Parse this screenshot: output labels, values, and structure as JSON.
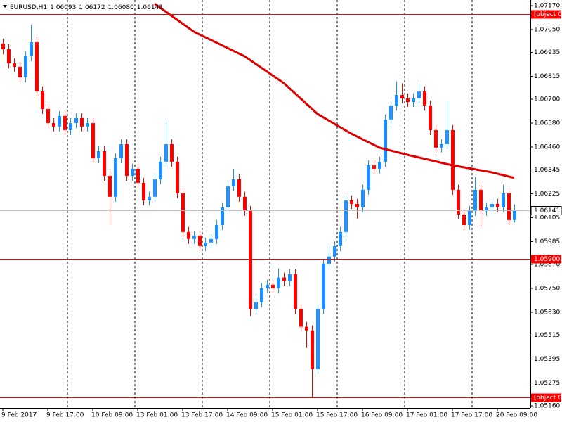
{
  "chart_data": {
    "type": "candlestick",
    "title": "EURUSD,H1",
    "up_color": "#1e90ff",
    "down_color": "#ff0000",
    "open": [
      1.06979,
      1.06951,
      1.0688,
      1.06863,
      1.0681,
      1.06916,
      1.06986,
      1.06739,
      1.06651,
      1.0658,
      1.06563,
      1.06616,
      1.06545,
      1.0658,
      1.06605,
      1.06563,
      1.0658,
      1.06404,
      1.06439,
      1.06315,
      1.0621,
      1.06404,
      1.06474,
      1.06315,
      1.06351,
      1.0628,
      1.06192,
      1.0621,
      1.06298,
      1.06386,
      1.06474,
      1.06386,
      1.06227,
      1.06033,
      1.05998,
      1.06015,
      1.05962,
      1.0598,
      1.05998,
      1.06068,
      1.06157,
      1.06263,
      1.06298,
      1.0621,
      1.06139,
      1.05645,
      1.0568,
      1.05751,
      1.05768,
      1.05751,
      1.05804,
      1.05786,
      1.05821,
      1.05645,
      1.05557,
      1.05539,
      1.05345,
      1.05645,
      1.05874,
      1.0591,
      1.05962,
      1.06033,
      1.06192,
      1.06174,
      1.06157,
      1.06245,
      1.06368,
      1.06351,
      1.06386,
      1.06598,
      1.06668,
      1.06721,
      1.06704,
      1.06686,
      1.06704,
      1.06739,
      1.06668,
      1.06545,
      1.06457,
      1.06474,
      1.06545,
      1.06245,
      1.06121,
      1.06068,
      1.06139,
      1.06245,
      1.06139,
      1.06157,
      1.06174,
      1.06157,
      1.06227,
      1.06093
    ],
    "high": [
      1.07004,
      1.06976,
      1.06905,
      1.06888,
      1.06941,
      1.07074,
      1.07011,
      1.06764,
      1.06676,
      1.06605,
      1.06641,
      1.06641,
      1.06605,
      1.0663,
      1.0663,
      1.06605,
      1.06605,
      1.06464,
      1.06464,
      1.0634,
      1.06429,
      1.06499,
      1.06499,
      1.06376,
      1.06376,
      1.06305,
      1.06235,
      1.06323,
      1.06411,
      1.06598,
      1.06499,
      1.06411,
      1.06252,
      1.06058,
      1.0604,
      1.0604,
      1.06005,
      1.06023,
      1.06093,
      1.06182,
      1.06288,
      1.06351,
      1.06323,
      1.06235,
      1.06164,
      1.05705,
      1.05776,
      1.05793,
      1.05793,
      1.0585,
      1.05829,
      1.05846,
      1.05846,
      1.0567,
      1.05582,
      1.05564,
      1.0567,
      1.05899,
      1.05962,
      1.05987,
      1.06058,
      1.06217,
      1.06217,
      1.06199,
      1.0627,
      1.06393,
      1.06393,
      1.06411,
      1.06623,
      1.06693,
      1.0679,
      1.0678,
      1.06729,
      1.06729,
      1.0678,
      1.06764,
      1.06693,
      1.0657,
      1.06499,
      1.0669,
      1.0657,
      1.0627,
      1.06146,
      1.06164,
      1.0631,
      1.0627,
      1.06182,
      1.06199,
      1.06199,
      1.0627,
      1.06252,
      1.06172
    ],
    "low": [
      1.06926,
      1.06855,
      1.06838,
      1.06785,
      1.06785,
      1.06891,
      1.06714,
      1.06626,
      1.06555,
      1.06538,
      1.06538,
      1.0652,
      1.0652,
      1.06555,
      1.06538,
      1.06538,
      1.06379,
      1.06379,
      1.0629,
      1.06068,
      1.06185,
      1.06379,
      1.0629,
      1.0629,
      1.06255,
      1.06167,
      1.06167,
      1.06185,
      1.06273,
      1.06361,
      1.06361,
      1.06202,
      1.06008,
      1.05973,
      1.05973,
      1.05937,
      1.05937,
      1.05955,
      1.05973,
      1.06043,
      1.06132,
      1.06238,
      1.06185,
      1.06114,
      1.0561,
      1.0562,
      1.05655,
      1.05726,
      1.05726,
      1.05726,
      1.05761,
      1.05761,
      1.0562,
      1.05532,
      1.0545,
      1.05204,
      1.0532,
      1.0562,
      1.05849,
      1.05885,
      1.05937,
      1.06008,
      1.06149,
      1.061,
      1.06132,
      1.0622,
      1.06326,
      1.06326,
      1.06361,
      1.06573,
      1.06643,
      1.06679,
      1.06661,
      1.06661,
      1.06679,
      1.06643,
      1.0652,
      1.06432,
      1.06432,
      1.06449,
      1.0622,
      1.06096,
      1.06043,
      1.06043,
      1.06114,
      1.0606,
      1.06114,
      1.06132,
      1.06132,
      1.06132,
      1.06068,
      1.0608
    ],
    "close": [
      1.06951,
      1.0688,
      1.06863,
      1.0681,
      1.06916,
      1.06986,
      1.06739,
      1.06651,
      1.0658,
      1.06563,
      1.06616,
      1.06545,
      1.0658,
      1.06605,
      1.06563,
      1.0658,
      1.06404,
      1.06439,
      1.06315,
      1.0621,
      1.06404,
      1.06474,
      1.06315,
      1.06351,
      1.0628,
      1.06192,
      1.0621,
      1.06298,
      1.06386,
      1.06474,
      1.06386,
      1.06227,
      1.06033,
      1.05998,
      1.06015,
      1.05962,
      1.0598,
      1.05998,
      1.06068,
      1.06157,
      1.06263,
      1.06298,
      1.0621,
      1.06139,
      1.05645,
      1.0568,
      1.05751,
      1.05768,
      1.05751,
      1.05804,
      1.05786,
      1.05821,
      1.05645,
      1.05557,
      1.05539,
      1.05345,
      1.05645,
      1.05874,
      1.0591,
      1.05962,
      1.06033,
      1.06192,
      1.06174,
      1.06157,
      1.06245,
      1.06368,
      1.06351,
      1.06386,
      1.06598,
      1.06668,
      1.06721,
      1.06704,
      1.06686,
      1.06704,
      1.06739,
      1.06668,
      1.06545,
      1.06457,
      1.06474,
      1.06545,
      1.06245,
      1.06121,
      1.06068,
      1.06139,
      1.06245,
      1.06139,
      1.06157,
      1.06174,
      1.06157,
      1.06227,
      1.06093,
      1.06141
    ],
    "moving_average": {
      "color": "#e00000",
      "x": [
        27,
        34,
        43,
        50,
        56,
        62,
        67,
        72,
        80,
        87,
        91
      ],
      "values": [
        1.0718,
        1.07039,
        1.06916,
        1.06781,
        1.06626,
        1.06527,
        1.06457,
        1.06421,
        1.06368,
        1.06333,
        1.06305
      ]
    },
    "levels": [
      {
        "value": 1.07129,
        "color": "#ff0000"
      },
      {
        "value": 1.059,
        "label": "1.05900",
        "color": "#ff0000"
      },
      {
        "value": 1.05204,
        "color": "#ff0000"
      }
    ],
    "current_price_color": "#c0c0c0",
    "ylim": [
      1.0516,
      1.0717
    ],
    "yticks": [
      {
        "value": 1.0717,
        "label": "1.07170"
      },
      {
        "value": 1.0705,
        "label": "1.07050"
      },
      1.06935,
      1.06815,
      {
        "value": 1.067,
        "label": "1.06700"
      },
      {
        "value": 1.0658,
        "label": "1.06580"
      },
      {
        "value": 1.0646,
        "label": "1.06460"
      },
      1.06345,
      1.06225,
      1.06105,
      1.05985,
      {
        "value": 1.0587,
        "label": "1.05870"
      },
      {
        "value": 1.0575,
        "label": "1.05750"
      },
      {
        "value": 1.0563,
        "label": "1.05630"
      },
      1.05515,
      1.05395,
      1.05275,
      {
        "value": 1.0516,
        "label": "1.05160"
      }
    ],
    "xticks": [
      {
        "value": 0,
        "label": "9 Feb 2017"
      },
      {
        "value": 8,
        "label": "9 Feb 17:00"
      },
      {
        "value": 16,
        "label": "10 Feb 09:00"
      },
      {
        "value": 24,
        "label": "13 Feb 01:00"
      },
      {
        "value": 32,
        "label": "13 Feb 17:00"
      },
      {
        "value": 40,
        "label": "14 Feb 09:00"
      },
      {
        "value": 48,
        "label": "15 Feb 01:00"
      },
      {
        "value": 56,
        "label": "15 Feb 17:00"
      },
      {
        "value": 64,
        "label": "16 Feb 09:00"
      },
      {
        "value": 72,
        "label": "17 Feb 01:00"
      },
      {
        "value": 80,
        "label": "17 Feb 17:00"
      },
      {
        "value": 88,
        "label": "20 Feb 09:00"
      }
    ]
  }
}
